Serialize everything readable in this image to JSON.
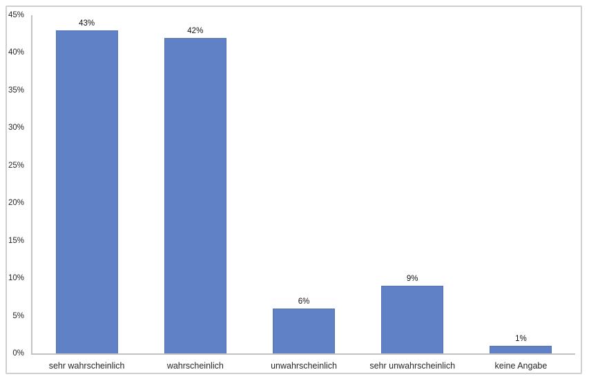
{
  "chart_data": {
    "type": "bar",
    "title": "",
    "xlabel": "",
    "ylabel": "",
    "categories": [
      "sehr wahrscheinlich",
      "wahrscheinlich",
      "unwahrscheinlich",
      "sehr unwahrscheinlich",
      "keine Angabe"
    ],
    "values": [
      43,
      42,
      6,
      9,
      1
    ],
    "value_labels": [
      "43%",
      "42%",
      "6%",
      "9%",
      "1%"
    ],
    "ylim": [
      0,
      45
    ],
    "ytick_step": 5,
    "yticks_top_to_bottom": [
      "45%",
      "40%",
      "35%",
      "30%",
      "25%",
      "20%",
      "15%",
      "10%",
      "5%",
      "0%"
    ],
    "grid": false,
    "legend": null,
    "colors": {
      "bar_fill": "#6081c6",
      "bar_border": "#5374b6",
      "axis_line": "#c3c3c3",
      "tick_label": "#262626",
      "value_label": "#111111",
      "frame_border": "#cfcfcf",
      "background": "#ffffff"
    }
  }
}
